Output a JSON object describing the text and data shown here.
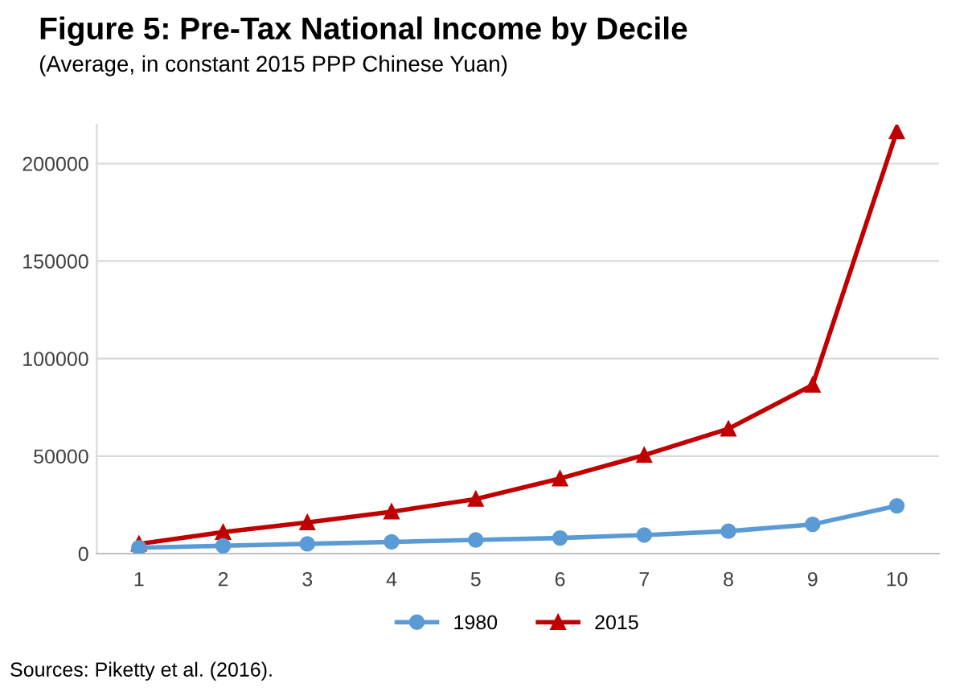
{
  "chart_data": {
    "type": "line",
    "title": "Figure 5: Pre-Tax National Income by Decile",
    "subtitle": "(Average, in constant 2015 PPP Chinese Yuan)",
    "categories": [
      "1",
      "2",
      "3",
      "4",
      "5",
      "6",
      "7",
      "8",
      "9",
      "10"
    ],
    "series": [
      {
        "name": "1980",
        "color": "#5b9bd5",
        "marker": "circle",
        "values": [
          3000,
          4000,
          5000,
          6000,
          7000,
          8000,
          9500,
          11500,
          15000,
          24500
        ]
      },
      {
        "name": "2015",
        "color": "#c00000",
        "marker": "triangle",
        "values": [
          5000,
          11000,
          16000,
          21500,
          28000,
          38500,
          50500,
          64000,
          86500,
          216500
        ]
      }
    ],
    "ylim": [
      0,
      220000
    ],
    "yticks": [
      0,
      50000,
      100000,
      150000,
      200000
    ],
    "grid": "y",
    "legend": "bottom",
    "line_style": "solid",
    "annotations": [
      "Sources: Piketty et al. (2016)."
    ]
  }
}
